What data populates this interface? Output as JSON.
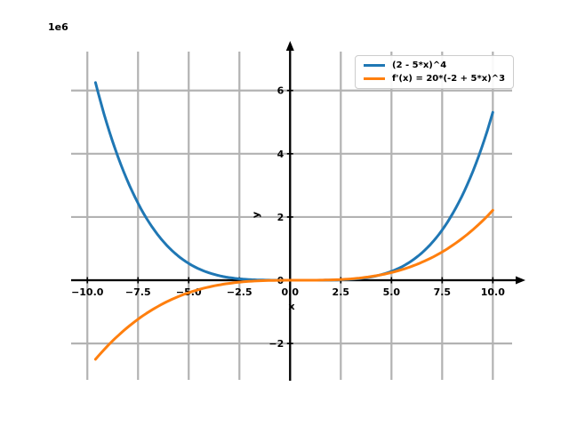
{
  "figure": {
    "offset_label": "1e6",
    "xlabel": "x",
    "ylabel": "y",
    "background": "#ffffff"
  },
  "colors": {
    "grid": "#b2b2b2",
    "spine": "#000000",
    "tick_label": "#000000",
    "legend_border": "#cccccc",
    "series_blue": "#1f77b4",
    "series_orange": "#ff7f0e"
  },
  "chart_data": {
    "type": "line",
    "title": "",
    "xlabel": "x",
    "ylabel": "y",
    "y_offset_label": "1e6",
    "grid": true,
    "legend_position": "upper right",
    "xlim": [
      -10.8,
      10.95
    ],
    "ylim": [
      -3150000,
      7230000
    ],
    "x_ticks": [
      -10,
      -7.5,
      -5,
      -2.5,
      0,
      2.5,
      5,
      7.5,
      10
    ],
    "x_tick_labels": [
      "−10.0",
      "−7.5",
      "−5.0",
      "−2.5",
      "0.0",
      "2.5",
      "5.0",
      "7.5",
      "10.0"
    ],
    "y_ticks": [
      -2000000,
      0,
      2000000,
      4000000,
      6000000
    ],
    "y_tick_labels": [
      "−2",
      "0",
      "2",
      "4",
      "6"
    ],
    "series": [
      {
        "name": "(2 - 5*x)^4",
        "color": "#1f77b4",
        "formula_id": "pow4",
        "x_start": -9.6,
        "x_end": 10,
        "sample_points": {
          "x": [
            -9.6,
            -8,
            -6,
            -4,
            -2,
            0,
            2,
            4,
            6,
            8,
            10
          ],
          "y": [
            6250000,
            3111696,
            1048576,
            234256,
            20736,
            16,
            4096,
            104976,
            614656,
            2085136,
            5308416
          ]
        }
      },
      {
        "name": "f'(x) = 20*(-2 + 5*x)^3",
        "color": "#ff7f0e",
        "formula_id": "cube20",
        "x_start": -9.6,
        "x_end": 10,
        "sample_points": {
          "x": [
            -9.6,
            -8,
            -6,
            -4,
            -2,
            0,
            2,
            4,
            6,
            8,
            10
          ],
          "y": [
            -2500000,
            -1481760,
            -655360,
            -212960,
            -34560,
            -160,
            10240,
            116640,
            439040,
            1097440,
            2211840
          ]
        }
      }
    ]
  }
}
